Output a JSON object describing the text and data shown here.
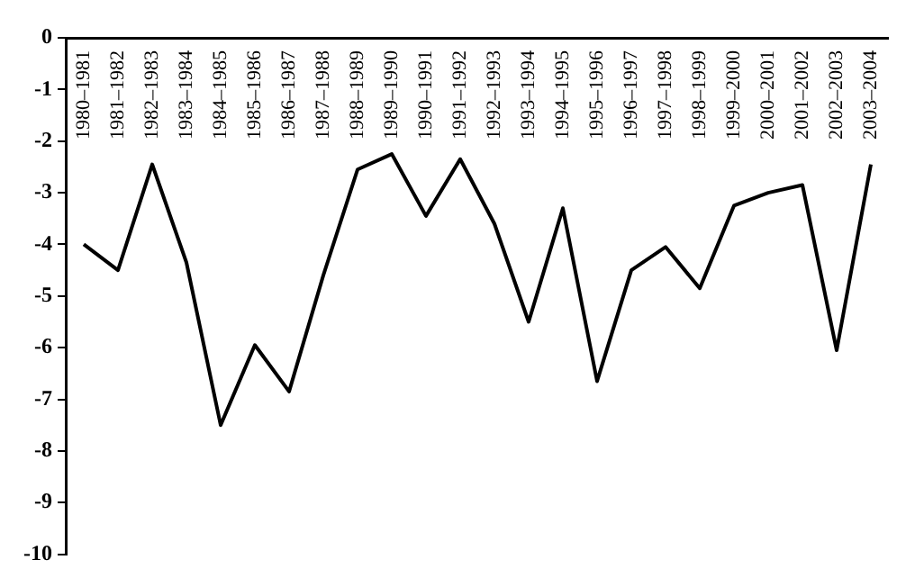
{
  "chart_data": {
    "type": "line",
    "categories": [
      "1980–1981",
      "1981–1982",
      "1982–1983",
      "1983–1984",
      "1984–1985",
      "1985–1986",
      "1986–1987",
      "1987–1988",
      "1988–1989",
      "1989–1990",
      "1990–1991",
      "1991–1992",
      "1992–1993",
      "1993–1994",
      "1994–1995",
      "1995–1996",
      "1996–1997",
      "1997–1998",
      "1998–1999",
      "1999–2000",
      "2000–2001",
      "2001–2002",
      "2002–2003",
      "2003–2004"
    ],
    "values": [
      -4.0,
      -4.5,
      -2.45,
      -4.35,
      -7.5,
      -5.95,
      -6.85,
      -4.6,
      -2.55,
      -2.25,
      -3.45,
      -2.35,
      -3.6,
      -5.5,
      -3.3,
      -6.65,
      -4.5,
      -4.05,
      -4.85,
      -3.25,
      -3.0,
      -2.85,
      -6.05,
      -2.45
    ],
    "color": "#000000",
    "ylim": [
      -10,
      0
    ],
    "yticks": [
      0,
      -1,
      -2,
      -3,
      -4,
      -5,
      -6,
      -7,
      -8,
      -9,
      -10
    ],
    "grid": false,
    "legend": false,
    "marker": "none",
    "line_style": "solid"
  }
}
